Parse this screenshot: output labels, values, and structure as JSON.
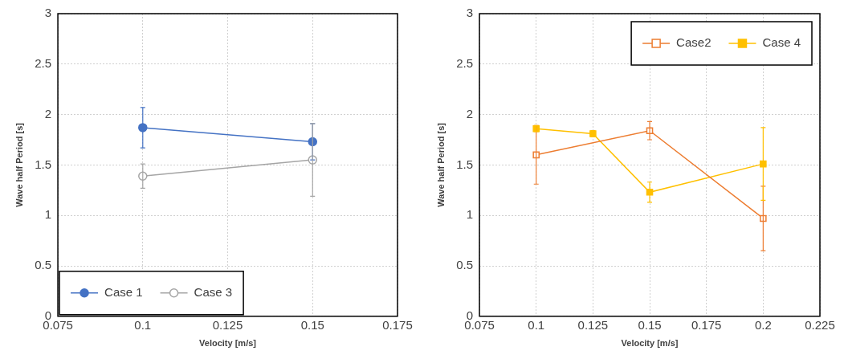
{
  "chart_data": [
    {
      "type": "line",
      "xlabel": "Velocity [m/s]",
      "ylabel": "Wave half Period [s]",
      "xlim": [
        0.075,
        0.175
      ],
      "xticks": [
        0.075,
        0.1,
        0.125,
        0.15,
        0.175
      ],
      "ylim": [
        0,
        3
      ],
      "yticks": [
        0,
        0.5,
        1,
        1.5,
        2,
        2.5,
        3
      ],
      "grid": true,
      "legend": "lower left",
      "series": [
        {
          "name": "Case 1",
          "color": "#4472c4",
          "marker": "circle",
          "line_style": "solid",
          "x": [
            0.1,
            0.15
          ],
          "values": [
            1.87,
            1.73
          ],
          "errors": [
            0.2,
            0.18
          ]
        },
        {
          "name": "Case 3",
          "color": "#a5a5a5",
          "marker": "open_circle",
          "line_style": "solid",
          "x": [
            0.1,
            0.15
          ],
          "values": [
            1.39,
            1.55
          ],
          "errors": [
            0.12,
            0.36
          ]
        }
      ]
    },
    {
      "type": "line",
      "xlabel": "Velocity [m/s]",
      "ylabel": "Wave half Period [s]",
      "xlim": [
        0.075,
        0.225
      ],
      "xticks": [
        0.075,
        0.1,
        0.125,
        0.15,
        0.175,
        0.2,
        0.225
      ],
      "ylim": [
        0,
        3
      ],
      "yticks": [
        0,
        0.5,
        1,
        1.5,
        2,
        2.5,
        3
      ],
      "grid": true,
      "legend": "upper right",
      "series": [
        {
          "name": "Case2",
          "color": "#ed7d31",
          "marker": "open_square",
          "line_style": "solid",
          "x": [
            0.1,
            0.15,
            0.2
          ],
          "values": [
            1.6,
            1.84,
            0.97
          ],
          "errors": [
            0.29,
            0.09,
            0.32
          ]
        },
        {
          "name": "Case 4",
          "color": "#ffc000",
          "marker": "square",
          "line_style": "solid",
          "x": [
            0.1,
            0.125,
            0.15,
            0.2
          ],
          "values": [
            1.86,
            1.81,
            1.23,
            1.51
          ],
          "errors": [
            0.03,
            0.03,
            0.1,
            0.36
          ]
        }
      ]
    }
  ]
}
